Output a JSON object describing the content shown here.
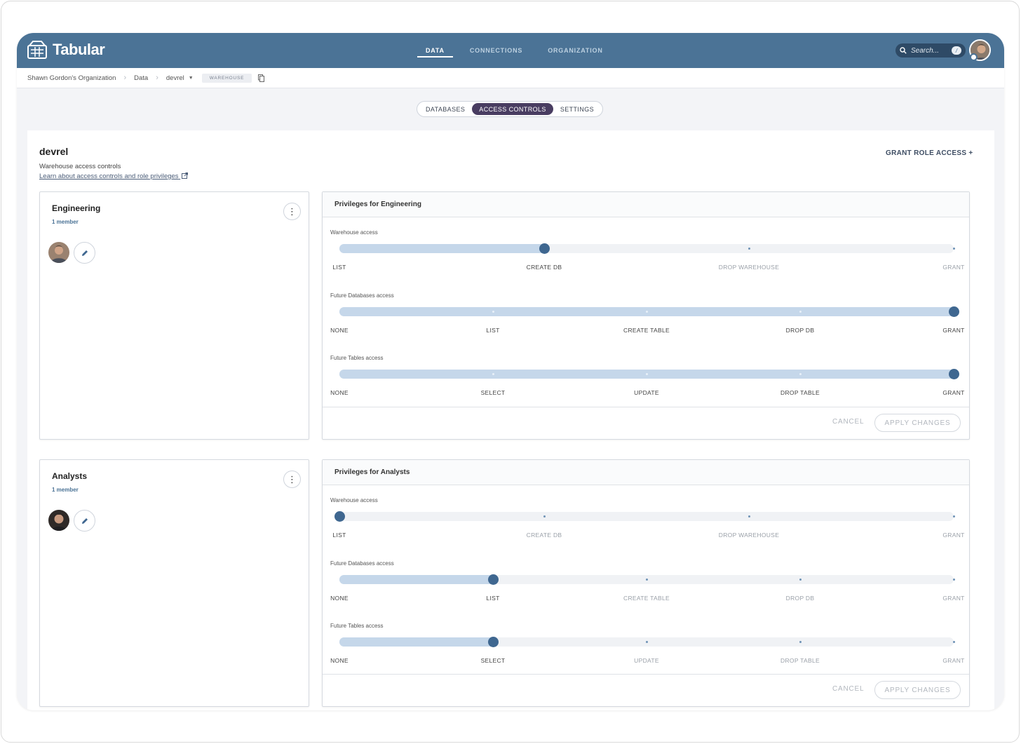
{
  "app": {
    "name": "Tabular"
  },
  "nav": {
    "items": [
      "DATA",
      "CONNECTIONS",
      "ORGANIZATION"
    ],
    "active": "DATA"
  },
  "search": {
    "placeholder": "Search...",
    "shortcut": "/"
  },
  "breadcrumb": {
    "org": "Shawn Gordon's Organization",
    "data": "Data",
    "warehouse": "devrel",
    "chip": "WAREHOUSE"
  },
  "tabs": {
    "items": [
      "DATABASES",
      "ACCESS CONTROLS",
      "SETTINGS"
    ],
    "active": "ACCESS CONTROLS"
  },
  "warehouse": {
    "name": "devrel",
    "subtitle": "Warehouse access controls",
    "link": "Learn about access controls and role privileges",
    "grant_button": "GRANT ROLE ACCESS +"
  },
  "roles": [
    {
      "name": "Engineering",
      "members": "1 member",
      "privileges_title": "Privileges for Engineering",
      "sliders": [
        {
          "label": "Warehouse access",
          "stops": [
            "LIST",
            "CREATE DB",
            "DROP WAREHOUSE",
            "GRANT"
          ],
          "value": 1
        },
        {
          "label": "Future Databases access",
          "stops": [
            "NONE",
            "LIST",
            "CREATE TABLE",
            "DROP DB",
            "GRANT"
          ],
          "value": 4
        },
        {
          "label": "Future Tables access",
          "stops": [
            "NONE",
            "SELECT",
            "UPDATE",
            "DROP TABLE",
            "GRANT"
          ],
          "value": 4
        }
      ],
      "cancel": "CANCEL",
      "apply": "APPLY CHANGES"
    },
    {
      "name": "Analysts",
      "members": "1 member",
      "privileges_title": "Privileges for Analysts",
      "sliders": [
        {
          "label": "Warehouse access",
          "stops": [
            "LIST",
            "CREATE DB",
            "DROP WAREHOUSE",
            "GRANT"
          ],
          "value": 0
        },
        {
          "label": "Future Databases access",
          "stops": [
            "NONE",
            "LIST",
            "CREATE TABLE",
            "DROP DB",
            "GRANT"
          ],
          "value": 1
        },
        {
          "label": "Future Tables access",
          "stops": [
            "NONE",
            "SELECT",
            "UPDATE",
            "DROP TABLE",
            "GRANT"
          ],
          "value": 1
        }
      ],
      "cancel": "CANCEL",
      "apply": "APPLY CHANGES"
    }
  ],
  "colors": {
    "header": "#4b7396",
    "tab_active": "#493d61",
    "slider_fill": "#c5d7ea",
    "thumb": "#3f6790"
  }
}
